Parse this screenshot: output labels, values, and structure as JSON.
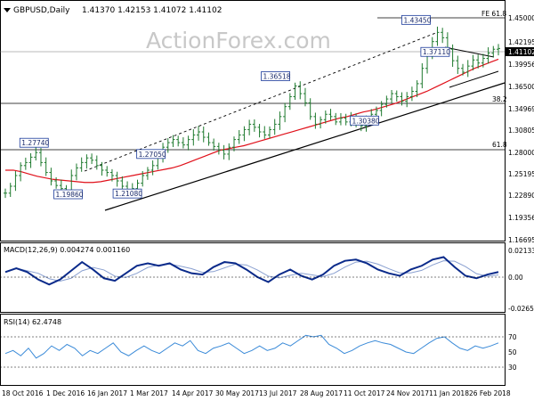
{
  "header": {
    "symbol": "GBPUSD,Daily",
    "ohlc": "1.41370 1.42153 1.41072 1.41102"
  },
  "watermark": "ActionForex.com",
  "price_panel": {
    "y_ticks": [
      "1.45000",
      "1.42195",
      "1.39956",
      "1.36500",
      "1.34969",
      "1.30805",
      "1.28000",
      "1.25195",
      "1.22890",
      "1.19356",
      "1.16695"
    ],
    "current_price": "1.41102",
    "levels": [
      {
        "label": "FE 61.8",
        "value": 1.45
      },
      {
        "label": "38.2",
        "value": 1.34969
      },
      {
        "label": "61.8",
        "value": 1.28
      }
    ],
    "price_labels": [
      "1.43450",
      "1.36518",
      "1.37110",
      "1.27740",
      "1.27050",
      "1.30380",
      "1.19860",
      "1.21080"
    ]
  },
  "macd_panel": {
    "label": "MACD(12,26,9) 0.004274 0.001160",
    "y_ticks": [
      "0.021334",
      "0.00",
      "-0.026514"
    ]
  },
  "rsi_panel": {
    "label": "RSI(14) 62.4748",
    "y_ticks": [
      "70",
      "50",
      "30"
    ]
  },
  "x_ticks": [
    "18 Oct 2016",
    "1 Dec 2016",
    "16 Jan 2017",
    "1 Mar 2017",
    "14 Apr 2017",
    "30 May 2017",
    "13 Jul 2017",
    "28 Aug 2017",
    "11 Oct 2017",
    "24 Nov 2017",
    "11 Jan 2018",
    "26 Feb 2018"
  ],
  "colors": {
    "candles": "#1e7a2e",
    "ma": "#e0101a",
    "trendline": "#000000",
    "channel": "#000000",
    "macd": "#0a2a8a",
    "signal": "#8aa0d0",
    "rsi": "#3a8ad8",
    "label_border": "#1a3a9a"
  },
  "chart_data": {
    "type": "line",
    "title": "GBPUSD,Daily",
    "x_ticks": [
      "18 Oct 2016",
      "1 Dec 2016",
      "16 Jan 2017",
      "1 Mar 2017",
      "14 Apr 2017",
      "30 May 2017",
      "13 Jul 2017",
      "28 Aug 2017",
      "11 Oct 2017",
      "24 Nov 2017",
      "11 Jan 2018",
      "26 Feb 2018"
    ],
    "series": [
      {
        "values": [
          1.222,
          1.231,
          1.245,
          1.258,
          1.262,
          1.269,
          1.275,
          1.262,
          1.249,
          1.238,
          1.232,
          1.228,
          1.224,
          1.245,
          1.255,
          1.262,
          1.268,
          1.265,
          1.258,
          1.252,
          1.249,
          1.245,
          1.238,
          1.231,
          1.225,
          1.228,
          1.235,
          1.245,
          1.252,
          1.258,
          1.268,
          1.282,
          1.288,
          1.292,
          1.288,
          1.285,
          1.292,
          1.298,
          1.302,
          1.295,
          1.288,
          1.283,
          1.278,
          1.273,
          1.282,
          1.292,
          1.298,
          1.305,
          1.312,
          1.308,
          1.302,
          1.298,
          1.305,
          1.312,
          1.322,
          1.335,
          1.348,
          1.362,
          1.352,
          1.34,
          1.322,
          1.312,
          1.318,
          1.325,
          1.322,
          1.315,
          1.32,
          1.315,
          1.322,
          1.315,
          1.31,
          1.318,
          1.325,
          1.33,
          1.338,
          1.345,
          1.352,
          1.348,
          1.342,
          1.348,
          1.355,
          1.365,
          1.385,
          1.405,
          1.42,
          1.432,
          1.425,
          1.41,
          1.395,
          1.385,
          1.38,
          1.388,
          1.396,
          1.392,
          1.398,
          1.405,
          1.41,
          1.411
        ]
      },
      {
        "values": [
          1.252,
          1.252,
          1.25,
          1.247,
          1.244,
          1.242,
          1.24,
          1.239,
          1.238,
          1.237,
          1.236,
          1.236,
          1.237,
          1.239,
          1.241,
          1.243,
          1.245,
          1.247,
          1.249,
          1.251,
          1.253,
          1.255,
          1.258,
          1.262,
          1.266,
          1.27,
          1.274,
          1.278,
          1.28,
          1.282,
          1.284,
          1.287,
          1.29,
          1.293,
          1.296,
          1.299,
          1.302,
          1.305,
          1.308,
          1.311,
          1.314,
          1.317,
          1.32,
          1.322,
          1.325,
          1.328,
          1.33,
          1.333,
          1.336,
          1.339,
          1.343,
          1.347,
          1.351,
          1.355,
          1.36,
          1.365,
          1.37,
          1.375,
          1.38,
          1.385,
          1.389,
          1.393,
          1.397
        ]
      },
      {
        "values": [
          0.004,
          0.007,
          0.004,
          -0.002,
          -0.006,
          -0.002,
          0.005,
          0.012,
          0.006,
          -0.001,
          -0.003,
          0.003,
          0.009,
          0.011,
          0.009,
          0.011,
          0.006,
          0.003,
          0.002,
          0.008,
          0.012,
          0.011,
          0.006,
          0.0,
          -0.004,
          0.002,
          0.006,
          0.001,
          -0.002,
          0.002,
          0.009,
          0.013,
          0.014,
          0.011,
          0.006,
          0.003,
          0.001,
          0.006,
          0.009,
          0.014,
          0.016,
          0.008,
          0.001,
          -0.001,
          0.002,
          0.004
        ]
      },
      {
        "values": [
          48,
          52,
          45,
          55,
          42,
          48,
          58,
          52,
          60,
          55,
          45,
          52,
          48,
          55,
          62,
          50,
          45,
          52,
          58,
          52,
          48,
          55,
          62,
          58,
          65,
          52,
          48,
          55,
          58,
          62,
          55,
          48,
          52,
          58,
          52,
          55,
          62,
          58,
          65,
          72,
          70,
          72,
          60,
          55,
          48,
          52,
          58,
          62,
          65,
          62,
          60,
          55,
          50,
          48,
          55,
          62,
          68,
          70,
          62,
          55,
          52,
          58,
          55,
          58,
          62
        ]
      }
    ],
    "y_ticks": [
      "1.45000",
      "1.42195",
      "1.39956",
      "1.36500",
      "1.34969",
      "1.30805",
      "1.28000",
      "1.25195",
      "1.22890",
      "1.19356",
      "1.16695"
    ],
    "ylim": [
      1.16,
      1.465
    ]
  }
}
